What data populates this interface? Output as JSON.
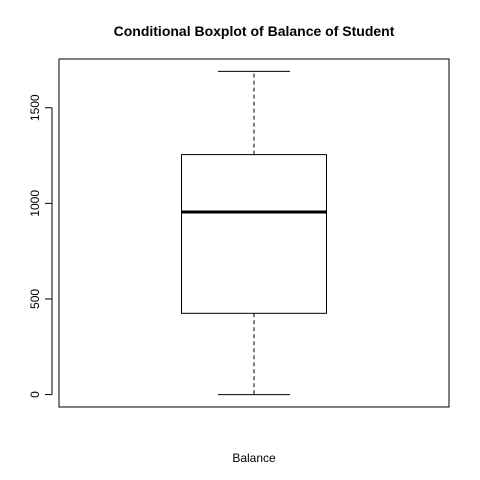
{
  "chart_data": {
    "type": "boxplot",
    "title": "Conditional Boxplot of Balance of Student",
    "xlabel": "Balance",
    "ylabel": "",
    "ylim": [
      -65,
      1755
    ],
    "yticks": [
      0,
      500,
      1000,
      1500
    ],
    "grid": false,
    "box": {
      "whisker_low": 0,
      "q1": 425,
      "median": 955,
      "q3": 1255,
      "whisker_high": 1690
    }
  }
}
